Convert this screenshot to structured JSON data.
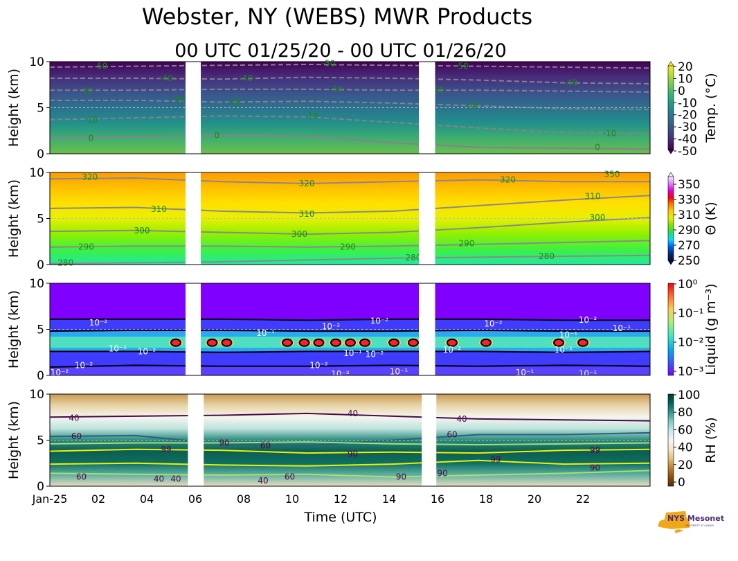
{
  "title": "Webster, NY (WEBS) MWR Products",
  "subtitle": "00 UTC 01/25/20 - 00 UTC 01/26/20",
  "logo": {
    "text": "NYS Mesonet",
    "sub": "UNIVERSITY AT ALBANY"
  },
  "xaxis": {
    "label": "Time (UTC)",
    "ticks": [
      {
        "t": 0,
        "label": "Jan-25"
      },
      {
        "t": 2,
        "label": "02"
      },
      {
        "t": 4,
        "label": "04"
      },
      {
        "t": 6,
        "label": "06"
      },
      {
        "t": 8,
        "label": "08"
      },
      {
        "t": 10,
        "label": "10"
      },
      {
        "t": 12,
        "label": "12"
      },
      {
        "t": 14,
        "label": "14"
      },
      {
        "t": 16,
        "label": "16"
      },
      {
        "t": 18,
        "label": "18"
      },
      {
        "t": 20,
        "label": "20"
      },
      {
        "t": 22,
        "label": "22"
      }
    ],
    "range_hours": [
      0,
      24.77
    ]
  },
  "chart_data": [
    {
      "type": "heatmap",
      "name": "temperature",
      "ylabel": "Height (km)",
      "ylim": [
        0,
        10
      ],
      "yticks": [
        "0",
        "5",
        "10"
      ],
      "missing": [
        [
          5.6,
          6.23
        ],
        [
          15.23,
          15.9
        ]
      ],
      "colorbar": {
        "label": "Temp. (°C)",
        "ticks": [
          "20",
          "10",
          "0",
          "-10",
          "-20",
          "-30",
          "-40",
          "-50"
        ],
        "colors": [
          "#440154",
          "#46327e",
          "#365c8d",
          "#277f8e",
          "#1fa187",
          "#4ac16d",
          "#a0da39",
          "#fde725"
        ]
      },
      "fill": [
        "#6cbf4e",
        "#3fae6e",
        "#22908b",
        "#2b728e",
        "#3b528b",
        "#472d7b",
        "#440154"
      ],
      "contours": [
        {
          "level": "0",
          "color": "#8a7f8f",
          "dash": false,
          "h": [
            1.7,
            1.8,
            2.0,
            1.9,
            1.2,
            0.7,
            0.6,
            0.5
          ]
        },
        {
          "level": "-10",
          "color": "#8a7f8f",
          "dash": true,
          "h": [
            3.7,
            3.9,
            4.1,
            4.0,
            3.4,
            2.8,
            2.3,
            2.2
          ]
        },
        {
          "level": "-20",
          "color": "#8a7f8f",
          "dash": true,
          "h": [
            5.8,
            5.8,
            5.6,
            5.7,
            5.5,
            5.2,
            4.9,
            4.8
          ]
        },
        {
          "level": "-30",
          "color": "#8a7f8f",
          "dash": true,
          "h": [
            6.9,
            6.9,
            7.0,
            7.0,
            6.9,
            6.9,
            6.8,
            6.7
          ]
        },
        {
          "level": "-40",
          "color": "#8a7f8f",
          "dash": true,
          "h": [
            8.2,
            8.2,
            8.1,
            8.3,
            8.2,
            8.0,
            7.7,
            7.6
          ]
        },
        {
          "level": "-50",
          "color": "#8a7f8f",
          "dash": true,
          "h": [
            9.4,
            9.5,
            9.6,
            9.7,
            9.6,
            9.5,
            9.4,
            9.3
          ]
        }
      ],
      "labels": [
        {
          "text": "-50",
          "t": 2.1,
          "h": 9.5
        },
        {
          "text": "-50",
          "t": 11.5,
          "h": 9.8
        },
        {
          "text": "-50",
          "t": 17,
          "h": 9.5
        },
        {
          "text": "-40",
          "t": 4.8,
          "h": 8.2
        },
        {
          "text": "-40",
          "t": 8.1,
          "h": 8.2
        },
        {
          "text": "-40",
          "t": 21.5,
          "h": 7.7
        },
        {
          "text": "-30",
          "t": 1.5,
          "h": 6.8
        },
        {
          "text": "-30",
          "t": 11.8,
          "h": 7.0
        },
        {
          "text": "-30",
          "t": 16,
          "h": 6.9
        },
        {
          "text": "-20",
          "t": 5.3,
          "h": 5.9
        },
        {
          "text": "-20",
          "t": 7.6,
          "h": 5.6
        },
        {
          "text": "-20",
          "t": 17.4,
          "h": 5.2
        },
        {
          "text": "-10",
          "t": 1.7,
          "h": 3.7
        },
        {
          "text": "-10",
          "t": 10.8,
          "h": 4.1
        },
        {
          "text": "-10",
          "t": 23.1,
          "h": 2.2
        },
        {
          "text": "0",
          "t": 1.7,
          "h": 1.7
        },
        {
          "text": "0",
          "t": 6.9,
          "h": 2.0
        },
        {
          "text": "0",
          "t": 22.6,
          "h": 0.7
        }
      ],
      "label_color": "#1a8a1a"
    },
    {
      "type": "heatmap",
      "name": "potential-temperature",
      "ylabel": "Height (km)",
      "ylim": [
        0,
        10
      ],
      "yticks": [
        "0",
        "5",
        "10"
      ],
      "missing": [
        [
          5.6,
          6.23
        ],
        [
          15.23,
          15.9
        ]
      ],
      "colorbar": {
        "label": "Θ (K)",
        "ticks": [
          "350",
          "330",
          "310",
          "290",
          "270",
          "250"
        ],
        "colors": [
          "#0a0a50",
          "#00306a",
          "#0060ff",
          "#00e0ff",
          "#20e060",
          "#80e000",
          "#e0f000",
          "#ffd000",
          "#ff8000",
          "#ff0000",
          "#e000e0",
          "#e080ff",
          "#ffe8ff"
        ]
      },
      "fill": [
        "#20e8a0",
        "#40f040",
        "#90f000",
        "#e8f000",
        "#ffe000",
        "#ffc000",
        "#ff9a00"
      ],
      "contours": [
        {
          "level": "280",
          "color": "#8a8a8a",
          "dash": false,
          "h": [
            0.1,
            0.2,
            0.3,
            0.5,
            0.7,
            0.8,
            0.9,
            1.0
          ]
        },
        {
          "level": "290",
          "color": "#8a8a8a",
          "dash": false,
          "h": [
            1.9,
            2.0,
            2.0,
            1.9,
            2.0,
            2.2,
            2.4,
            2.6
          ]
        },
        {
          "level": "300",
          "color": "#8a8a8a",
          "dash": false,
          "h": [
            3.6,
            3.7,
            3.5,
            3.3,
            3.5,
            4.0,
            4.6,
            5.1
          ]
        },
        {
          "level": "310",
          "color": "#8a8a8a",
          "dash": false,
          "h": [
            6.1,
            6.2,
            5.8,
            5.6,
            5.8,
            6.4,
            7.0,
            7.5
          ]
        },
        {
          "level": "320",
          "color": "#8a8a8a",
          "dash": false,
          "h": [
            9.3,
            9.4,
            9.0,
            8.8,
            9.0,
            9.2,
            9.0,
            9.0
          ]
        }
      ],
      "labels": [
        {
          "text": "320",
          "t": 1.65,
          "h": 9.5
        },
        {
          "text": "320",
          "t": 10.6,
          "h": 8.8
        },
        {
          "text": "320",
          "t": 18.9,
          "h": 9.2
        },
        {
          "text": "350",
          "t": 23.2,
          "h": 9.8
        },
        {
          "text": "310",
          "t": 4.5,
          "h": 6.0
        },
        {
          "text": "310",
          "t": 10.6,
          "h": 5.5
        },
        {
          "text": "310",
          "t": 22.4,
          "h": 7.4
        },
        {
          "text": "300",
          "t": 3.8,
          "h": 3.7
        },
        {
          "text": "300",
          "t": 10.3,
          "h": 3.3
        },
        {
          "text": "300",
          "t": 22.6,
          "h": 5.1
        },
        {
          "text": "290",
          "t": 1.5,
          "h": 1.9
        },
        {
          "text": "290",
          "t": 12.3,
          "h": 1.9
        },
        {
          "text": "290",
          "t": 17.2,
          "h": 2.3
        },
        {
          "text": "280",
          "t": 0.65,
          "h": 0.2
        },
        {
          "text": "280",
          "t": 15,
          "h": 0.75
        },
        {
          "text": "280",
          "t": 20.5,
          "h": 0.9
        }
      ],
      "label_color": "#1a8a1a"
    },
    {
      "type": "heatmap",
      "name": "liquid-water",
      "ylabel": "Height (km)",
      "ylim": [
        0,
        10
      ],
      "yticks": [
        "0",
        "5",
        "10"
      ],
      "missing": [
        [
          5.6,
          6.23
        ],
        [
          15.23,
          15.9
        ]
      ],
      "colorbar": {
        "label": "Liquid (g m⁻³)",
        "ticks": [
          "10⁰",
          "10⁻¹",
          "10⁻²",
          "10⁻³"
        ],
        "colors": [
          "#7f00ff",
          "#3060ff",
          "#00b0f0",
          "#40e8c0",
          "#a0f080",
          "#ffd050",
          "#ff7030",
          "#ff0000"
        ]
      },
      "fill": [
        "#7f00ff"
      ],
      "contours": [
        {
          "level": "10-2 top",
          "color": "#000",
          "dash": false,
          "h": [
            6.1,
            6.1,
            6.1,
            6.0,
            6.1,
            6.1,
            6.0,
            6.0
          ]
        },
        {
          "level": "10-1 top",
          "color": "#000",
          "dash": false,
          "h": [
            4.8,
            4.9,
            4.9,
            4.8,
            4.8,
            4.9,
            4.8,
            4.8
          ]
        },
        {
          "level": "10-1 bottom",
          "color": "#000",
          "dash": false,
          "h": [
            2.6,
            2.6,
            2.5,
            2.6,
            2.6,
            2.6,
            2.5,
            2.6
          ]
        },
        {
          "level": "10-2 bottom",
          "color": "#000",
          "dash": false,
          "h": [
            0.9,
            1.1,
            1.0,
            1.0,
            1.1,
            1.0,
            1.1,
            1.0
          ]
        }
      ],
      "labels": [
        {
          "text": "10⁻²",
          "t": 2,
          "h": 5.7
        },
        {
          "text": "10⁻¹",
          "t": 2.8,
          "h": 2.9
        },
        {
          "text": "10⁻²",
          "t": 4,
          "h": 2.6
        },
        {
          "text": "10⁻²",
          "t": 1.4,
          "h": 1.1
        },
        {
          "text": "10⁻²",
          "t": 0.4,
          "h": 0.3
        },
        {
          "text": "10⁻¹",
          "t": 8.9,
          "h": 4.6
        },
        {
          "text": "10⁻²",
          "t": 11.6,
          "h": 5.3
        },
        {
          "text": "10⁻²",
          "t": 13.6,
          "h": 5.9
        },
        {
          "text": "10⁻²",
          "t": 11.1,
          "h": 1.1
        },
        {
          "text": "10⁻²",
          "t": 11.3,
          "h": 0.15
        },
        {
          "text": "10⁻¹",
          "t": 12.5,
          "h": 2.4
        },
        {
          "text": "10⁻²",
          "t": 13.4,
          "h": 2.3
        },
        {
          "text": "10⁻¹",
          "t": 14.4,
          "h": 0.4
        },
        {
          "text": "10⁻²",
          "t": 18.3,
          "h": 5.6
        },
        {
          "text": "10⁻¹",
          "t": 21.4,
          "h": 4.4
        },
        {
          "text": "10⁻¹",
          "t": 21.2,
          "h": 2.8
        },
        {
          "text": "10⁻¹",
          "t": 19.6,
          "h": 0.3
        },
        {
          "text": "10⁻²",
          "t": 22.2,
          "h": 6.0
        },
        {
          "text": "10⁻¹",
          "t": 22.2,
          "h": 0.2
        },
        {
          "text": "10⁻²",
          "t": 16.6,
          "h": 2.8
        },
        {
          "text": "10⁻¹",
          "t": 23.6,
          "h": 5.1
        }
      ],
      "label_color": "#ffffff",
      "cores": [
        {
          "t": 5.2
        },
        {
          "t": 6.7
        },
        {
          "t": 7.3
        },
        {
          "t": 9.8
        },
        {
          "t": 10.5
        },
        {
          "t": 11.1
        },
        {
          "t": 11.8
        },
        {
          "t": 12.4
        },
        {
          "t": 13.0
        },
        {
          "t": 14.2
        },
        {
          "t": 15.0
        },
        {
          "t": 16.6
        },
        {
          "t": 18.0
        },
        {
          "t": 21.0
        },
        {
          "t": 22.0
        }
      ]
    },
    {
      "type": "heatmap",
      "name": "relative-humidity",
      "ylabel": "Height (km)",
      "ylim": [
        0,
        10
      ],
      "yticks": [
        "0",
        "5",
        "10"
      ],
      "missing": [
        [
          5.7,
          6.35
        ],
        [
          15.35,
          15.95
        ]
      ],
      "colorbar": {
        "label": "RH (%)",
        "ticks": [
          "100",
          "80",
          "60",
          "40",
          "20",
          "0"
        ],
        "colors": [
          "#543005",
          "#8c510a",
          "#bf812d",
          "#dfc27d",
          "#f6e8c3",
          "#f5f5f5",
          "#c7eae5",
          "#80cdc1",
          "#35978f",
          "#01665e",
          "#003c30"
        ]
      },
      "fill": [
        "#e8dcc0",
        "#5fb0a0",
        "#0e6f62",
        "#0b5e52",
        "#2a8a7d",
        "#bfe4dd",
        "#f5f5f0",
        "#e8d4a8",
        "#c89a52"
      ],
      "contours": [
        {
          "level": "40",
          "color": "#4a0a4a",
          "dash": false,
          "h": [
            7.5,
            7.6,
            7.7,
            7.9,
            7.6,
            7.3,
            7.2,
            7.1
          ]
        },
        {
          "level": "60",
          "color": "#2a6080",
          "dash": false,
          "h": [
            5.4,
            5.5,
            4.6,
            4.4,
            5.0,
            5.6,
            5.6,
            5.8
          ]
        },
        {
          "level": "90",
          "color": "#a8e070",
          "dash": false,
          "h": [
            4.6,
            4.7,
            4.7,
            4.8,
            4.6,
            4.5,
            4.6,
            4.7
          ]
        },
        {
          "level": "99",
          "color": "#f0f000",
          "dash": false,
          "h": [
            3.8,
            4.0,
            3.9,
            3.6,
            3.7,
            3.6,
            3.9,
            4.0
          ]
        },
        {
          "level": "99b",
          "color": "#f0f000",
          "dash": false,
          "h": [
            2.4,
            2.5,
            2.3,
            2.2,
            2.4,
            2.8,
            2.4,
            2.5
          ]
        },
        {
          "level": "90b",
          "color": "#a8e070",
          "dash": false,
          "h": [
            1.4,
            1.3,
            1.2,
            1.3,
            1.0,
            1.2,
            1.4,
            1.7
          ]
        }
      ],
      "labels": [
        {
          "text": "40",
          "t": 1,
          "h": 7.4
        },
        {
          "text": "40",
          "t": 12.5,
          "h": 7.9
        },
        {
          "text": "40",
          "t": 17,
          "h": 7.3
        },
        {
          "text": "60",
          "t": 1.1,
          "h": 5.4
        },
        {
          "text": "60",
          "t": 8.9,
          "h": 4.4
        },
        {
          "text": "60",
          "t": 16.6,
          "h": 5.6
        },
        {
          "text": "90",
          "t": 7.2,
          "h": 4.7
        },
        {
          "text": "99",
          "t": 4.8,
          "h": 4.0
        },
        {
          "text": "99",
          "t": 18.4,
          "h": 2.9
        },
        {
          "text": "99",
          "t": 22.5,
          "h": 3.9
        },
        {
          "text": "90",
          "t": 22.5,
          "h": 2.0
        },
        {
          "text": "90",
          "t": 16.2,
          "h": 1.4
        },
        {
          "text": "90",
          "t": 14.5,
          "h": 1.0
        },
        {
          "text": "90",
          "t": 12.5,
          "h": 3.5
        },
        {
          "text": "60",
          "t": 9.9,
          "h": 1.0
        },
        {
          "text": "60",
          "t": 1.3,
          "h": 1.0
        },
        {
          "text": "40",
          "t": 4.5,
          "h": 0.8
        },
        {
          "text": "40",
          "t": 5.2,
          "h": 0.8
        },
        {
          "text": "40",
          "t": 8.8,
          "h": 0.6
        }
      ],
      "label_color": "#4a0a4a"
    }
  ]
}
